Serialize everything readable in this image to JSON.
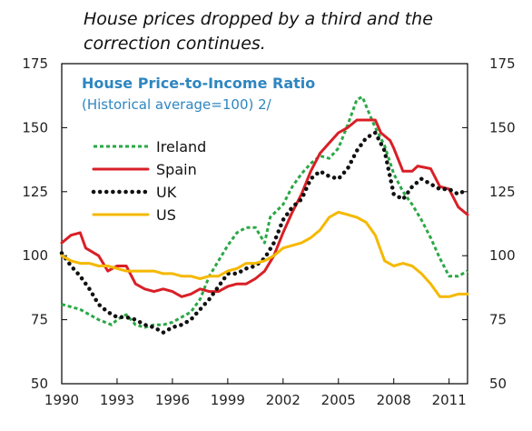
{
  "caption": {
    "line1": "House prices dropped by a third and the",
    "line2": "correction continues."
  },
  "chart_data": {
    "type": "line",
    "title": "House Price-to-Income Ratio",
    "subtitle": "(Historical average=100) 2/",
    "xlim": [
      1990,
      2012
    ],
    "ylim": [
      50,
      175
    ],
    "x_ticks": [
      1990,
      1993,
      1996,
      1999,
      2002,
      2005,
      2008,
      2011
    ],
    "y_ticks": [
      50,
      75,
      100,
      125,
      150,
      175
    ],
    "grid": false,
    "legend_position": "upper-left",
    "series": [
      {
        "name": "Ireland",
        "color": "#2AA845",
        "style": "dashed",
        "points": [
          [
            1990,
            81
          ],
          [
            1990.5,
            80
          ],
          [
            1991,
            79
          ],
          [
            1991.5,
            77
          ],
          [
            1992,
            75
          ],
          [
            1992.7,
            73
          ],
          [
            1993,
            75
          ],
          [
            1993.5,
            77
          ],
          [
            1994,
            73
          ],
          [
            1994.5,
            72
          ],
          [
            1995,
            73
          ],
          [
            1995.5,
            73
          ],
          [
            1996,
            74
          ],
          [
            1996.5,
            76
          ],
          [
            1997,
            78
          ],
          [
            1997.5,
            83
          ],
          [
            1998,
            92
          ],
          [
            1998.5,
            98
          ],
          [
            1999,
            104
          ],
          [
            1999.5,
            109
          ],
          [
            2000,
            111
          ],
          [
            2000.5,
            111
          ],
          [
            2001,
            105
          ],
          [
            2001.3,
            115
          ],
          [
            2002,
            120
          ],
          [
            2002.5,
            127
          ],
          [
            2003,
            132
          ],
          [
            2003.5,
            136
          ],
          [
            2004,
            139
          ],
          [
            2004.5,
            138
          ],
          [
            2005,
            142
          ],
          [
            2005.5,
            151
          ],
          [
            2006,
            161
          ],
          [
            2006.3,
            162
          ],
          [
            2006.7,
            155
          ],
          [
            2007,
            150
          ],
          [
            2007.5,
            143
          ],
          [
            2008,
            132
          ],
          [
            2008.5,
            125
          ],
          [
            2009,
            120
          ],
          [
            2009.5,
            114
          ],
          [
            2010,
            107
          ],
          [
            2010.5,
            99
          ],
          [
            2011,
            92
          ],
          [
            2011.5,
            92
          ],
          [
            2012,
            94
          ]
        ]
      },
      {
        "name": "Spain",
        "color": "#D91F26",
        "style": "solid",
        "points": [
          [
            1990,
            105
          ],
          [
            1990.5,
            108
          ],
          [
            1991,
            109
          ],
          [
            1991.3,
            103
          ],
          [
            1992,
            100
          ],
          [
            1992.5,
            94
          ],
          [
            1993,
            96
          ],
          [
            1993.5,
            96
          ],
          [
            1994,
            89
          ],
          [
            1994.5,
            87
          ],
          [
            1995,
            86
          ],
          [
            1995.5,
            87
          ],
          [
            1996,
            86
          ],
          [
            1996.5,
            84
          ],
          [
            1997,
            85
          ],
          [
            1997.5,
            87
          ],
          [
            1998,
            86
          ],
          [
            1998.5,
            86
          ],
          [
            1999,
            88
          ],
          [
            1999.5,
            89
          ],
          [
            2000,
            89
          ],
          [
            2000.5,
            91
          ],
          [
            2001,
            94
          ],
          [
            2001.5,
            100
          ],
          [
            2002,
            109
          ],
          [
            2002.5,
            117
          ],
          [
            2003,
            124
          ],
          [
            2003.5,
            133
          ],
          [
            2004,
            140
          ],
          [
            2004.5,
            144
          ],
          [
            2005,
            148
          ],
          [
            2005.5,
            150
          ],
          [
            2006,
            153
          ],
          [
            2006.5,
            153
          ],
          [
            2007,
            153
          ],
          [
            2007.3,
            148
          ],
          [
            2007.8,
            145
          ],
          [
            2008,
            142
          ],
          [
            2008.5,
            133
          ],
          [
            2009,
            133
          ],
          [
            2009.3,
            135
          ],
          [
            2010,
            134
          ],
          [
            2010.5,
            127
          ],
          [
            2011,
            126
          ],
          [
            2011.5,
            119
          ],
          [
            2012,
            116
          ]
        ]
      },
      {
        "name": "UK",
        "color": "#111111",
        "style": "dotted",
        "points": [
          [
            1990,
            101
          ],
          [
            1990.5,
            96
          ],
          [
            1991,
            92
          ],
          [
            1991.5,
            87
          ],
          [
            1992,
            81
          ],
          [
            1992.5,
            78
          ],
          [
            1993,
            76
          ],
          [
            1993.5,
            76
          ],
          [
            1994,
            75
          ],
          [
            1994.5,
            73
          ],
          [
            1995,
            72
          ],
          [
            1995.5,
            70
          ],
          [
            1996,
            72
          ],
          [
            1996.5,
            73
          ],
          [
            1997,
            75
          ],
          [
            1997.5,
            79
          ],
          [
            1998,
            83
          ],
          [
            1998.5,
            88
          ],
          [
            1999,
            93
          ],
          [
            1999.5,
            93
          ],
          [
            2000,
            95
          ],
          [
            2000.5,
            96
          ],
          [
            2001,
            99
          ],
          [
            2001.5,
            105
          ],
          [
            2002,
            114
          ],
          [
            2002.5,
            119
          ],
          [
            2003,
            122
          ],
          [
            2003.5,
            130
          ],
          [
            2004,
            133
          ],
          [
            2004.5,
            131
          ],
          [
            2005,
            130
          ],
          [
            2005.5,
            134
          ],
          [
            2006,
            141
          ],
          [
            2006.5,
            146
          ],
          [
            2007,
            148
          ],
          [
            2007.5,
            141
          ],
          [
            2008,
            124
          ],
          [
            2008.5,
            122
          ],
          [
            2009,
            127
          ],
          [
            2009.5,
            130
          ],
          [
            2010,
            128
          ],
          [
            2010.5,
            126
          ],
          [
            2011,
            126
          ],
          [
            2011.5,
            124
          ],
          [
            2012,
            126
          ]
        ]
      },
      {
        "name": "US",
        "color": "#F5B800",
        "style": "solid",
        "points": [
          [
            1990,
            100
          ],
          [
            1990.5,
            98
          ],
          [
            1991,
            97
          ],
          [
            1991.5,
            97
          ],
          [
            1992,
            96
          ],
          [
            1992.5,
            96
          ],
          [
            1993,
            95
          ],
          [
            1993.5,
            94
          ],
          [
            1994,
            94
          ],
          [
            1994.5,
            94
          ],
          [
            1995,
            94
          ],
          [
            1995.5,
            93
          ],
          [
            1996,
            93
          ],
          [
            1996.5,
            92
          ],
          [
            1997,
            92
          ],
          [
            1997.5,
            91
          ],
          [
            1998,
            92
          ],
          [
            1998.5,
            92
          ],
          [
            1999,
            94
          ],
          [
            1999.5,
            95
          ],
          [
            2000,
            97
          ],
          [
            2000.5,
            97
          ],
          [
            2001,
            98
          ],
          [
            2001.5,
            100
          ],
          [
            2002,
            103
          ],
          [
            2002.5,
            104
          ],
          [
            2003,
            105
          ],
          [
            2003.5,
            107
          ],
          [
            2004,
            110
          ],
          [
            2004.5,
            115
          ],
          [
            2005,
            117
          ],
          [
            2005.5,
            116
          ],
          [
            2006,
            115
          ],
          [
            2006.5,
            113
          ],
          [
            2007,
            108
          ],
          [
            2007.5,
            98
          ],
          [
            2008,
            96
          ],
          [
            2008.5,
            97
          ],
          [
            2009,
            96
          ],
          [
            2009.5,
            93
          ],
          [
            2010,
            89
          ],
          [
            2010.5,
            84
          ],
          [
            2011,
            84
          ],
          [
            2011.5,
            85
          ],
          [
            2012,
            85
          ]
        ]
      }
    ]
  }
}
